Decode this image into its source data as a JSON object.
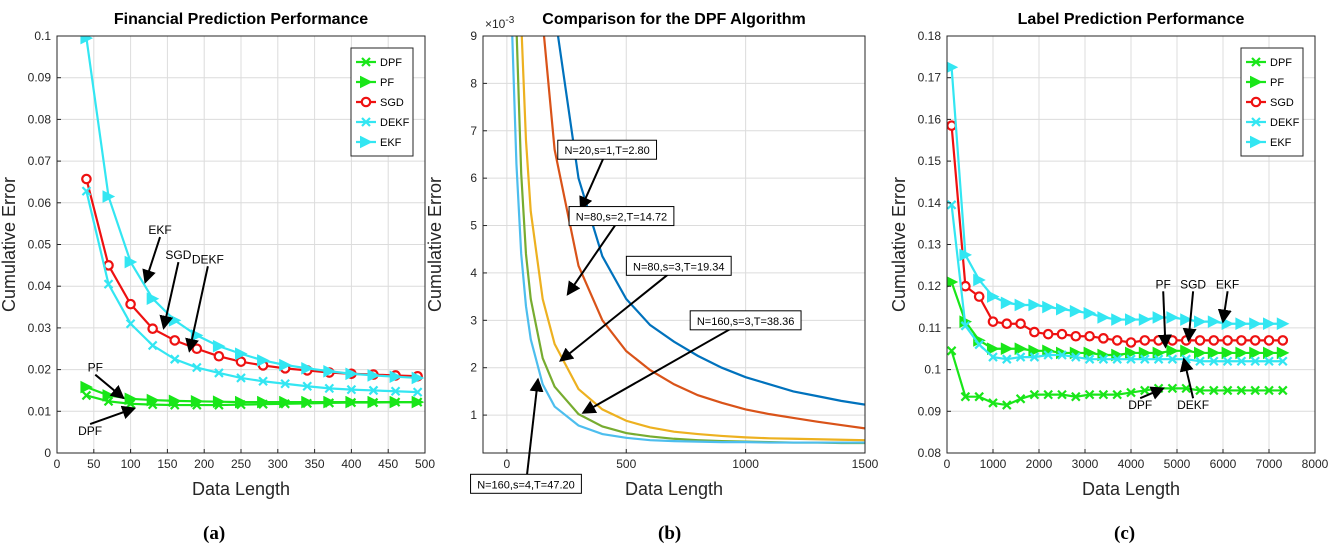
{
  "panels": [
    {
      "label": "(a)"
    },
    {
      "label": "(b)"
    },
    {
      "label": "(c)"
    }
  ],
  "chart_data": [
    {
      "type": "line",
      "title": "Financial Prediction Performance",
      "xlabel": "Data Length",
      "ylabel": "Cumulative Error",
      "xlim": [
        0,
        500
      ],
      "ylim": [
        0,
        0.1
      ],
      "xticks": [
        0,
        50,
        100,
        150,
        200,
        250,
        300,
        350,
        400,
        450,
        500
      ],
      "yticks": [
        0,
        0.01,
        0.02,
        0.03,
        0.04,
        0.05,
        0.06,
        0.07,
        0.08,
        0.09,
        0.1
      ],
      "grid": true,
      "legend_position": "top-right",
      "x": [
        40,
        70,
        100,
        130,
        160,
        190,
        220,
        250,
        280,
        310,
        340,
        370,
        400,
        430,
        460,
        490
      ],
      "series": [
        {
          "name": "DPF",
          "color": "#19e619",
          "marker": "x",
          "values": [
            0.0138,
            0.0124,
            0.0118,
            0.0116,
            0.0115,
            0.0115,
            0.0115,
            0.0116,
            0.0117,
            0.0118,
            0.0119,
            0.012,
            0.0121,
            0.0121,
            0.0122,
            0.0122
          ]
        },
        {
          "name": "PF",
          "color": "#19e619",
          "marker": "triangle-right",
          "values": [
            0.0158,
            0.0138,
            0.013,
            0.0127,
            0.0125,
            0.0124,
            0.0123,
            0.0122,
            0.0122,
            0.0122,
            0.0122,
            0.0122,
            0.0122,
            0.0122,
            0.0122,
            0.0122
          ]
        },
        {
          "name": "SGD",
          "color": "#ee1111",
          "marker": "circle",
          "values": [
            0.0657,
            0.045,
            0.0357,
            0.0298,
            0.027,
            0.025,
            0.0232,
            0.0219,
            0.021,
            0.0203,
            0.0198,
            0.0193,
            0.019,
            0.0188,
            0.0186,
            0.0184
          ]
        },
        {
          "name": "DEKF",
          "color": "#33e6f2",
          "marker": "x",
          "values": [
            0.0628,
            0.0405,
            0.031,
            0.0258,
            0.0225,
            0.0205,
            0.0192,
            0.018,
            0.0172,
            0.0166,
            0.016,
            0.0155,
            0.0152,
            0.015,
            0.0148,
            0.0146
          ]
        },
        {
          "name": "EKF",
          "color": "#33e6f2",
          "marker": "triangle-right",
          "values": [
            0.0995,
            0.0615,
            0.0458,
            0.037,
            0.0318,
            0.0282,
            0.0256,
            0.0238,
            0.0222,
            0.0211,
            0.0203,
            0.0196,
            0.019,
            0.0186,
            0.0183,
            0.018
          ]
        }
      ],
      "annotations": [
        {
          "text": "EKF",
          "x": 140,
          "y": 0.0525,
          "point_x": 120,
          "point_y": 0.041
        },
        {
          "text": "SGD",
          "x": 165,
          "y": 0.0465,
          "point_x": 145,
          "point_y": 0.03
        },
        {
          "text": "DEKF",
          "x": 205,
          "y": 0.0455,
          "point_x": 180,
          "point_y": 0.0245
        },
        {
          "text": "PF",
          "x": 52,
          "y": 0.0195,
          "point_x": 90,
          "point_y": 0.0132
        },
        {
          "text": "DPF",
          "x": 45,
          "y": 0.0043,
          "point_x": 105,
          "point_y": 0.0107
        }
      ]
    },
    {
      "type": "line",
      "title": "Comparison for the DPF Algorithm",
      "xlabel": "Data Length",
      "ylabel": "Cumulative Error",
      "y_multiplier": "×10",
      "y_multiplier_exp": "-3",
      "xlim": [
        -100,
        1500
      ],
      "ylim": [
        0.2,
        9
      ],
      "xticks": [
        0,
        500,
        1000,
        1500
      ],
      "yticks": [
        1,
        2,
        3,
        4,
        5,
        6,
        7,
        8,
        9
      ],
      "grid": true,
      "x": [
        10,
        20,
        40,
        60,
        80,
        100,
        150,
        200,
        300,
        400,
        500,
        600,
        700,
        800,
        900,
        1000,
        1100,
        1200,
        1300,
        1400,
        1500
      ],
      "series": [
        {
          "name": "N=20,s=1,T=2.80",
          "color": "#0072bd",
          "values": [
            null,
            null,
            null,
            null,
            null,
            null,
            null,
            9.5,
            6.0,
            4.35,
            3.45,
            2.9,
            2.55,
            2.25,
            2.0,
            1.8,
            1.65,
            1.5,
            1.4,
            1.3,
            1.22
          ]
        },
        {
          "name": "N=80,s=2,T=14.72",
          "color": "#d95319",
          "values": [
            null,
            null,
            null,
            null,
            null,
            null,
            9.3,
            6.6,
            4.15,
            3.0,
            2.35,
            1.95,
            1.65,
            1.42,
            1.26,
            1.12,
            1.02,
            0.94,
            0.86,
            0.79,
            0.72
          ]
        },
        {
          "name": "N=80,s=3,T=19.34",
          "color": "#edb120",
          "values": [
            null,
            null,
            null,
            9.3,
            6.8,
            5.3,
            3.45,
            2.5,
            1.55,
            1.12,
            0.88,
            0.74,
            0.65,
            0.6,
            0.56,
            0.53,
            0.51,
            0.5,
            0.49,
            0.48,
            0.47
          ]
        },
        {
          "name": "N=160,s=3,T=38.36",
          "color": "#77ac30",
          "values": [
            null,
            null,
            9.2,
            6.1,
            4.4,
            3.45,
            2.2,
            1.6,
            1.02,
            0.76,
            0.62,
            0.55,
            0.5,
            0.47,
            0.45,
            0.44,
            0.43,
            0.42,
            0.42,
            0.41,
            0.41
          ]
        },
        {
          "name": "N=160,s=4,T=47.20",
          "color": "#4dbeee",
          "values": [
            null,
            9.4,
            6.3,
            4.4,
            3.3,
            2.6,
            1.65,
            1.18,
            0.78,
            0.6,
            0.52,
            0.47,
            0.45,
            0.44,
            0.43,
            0.43,
            0.42,
            0.42,
            0.42,
            0.42,
            0.42
          ]
        }
      ],
      "annotations": [
        {
          "text": "N=20,s=1,T=2.80",
          "x": 420,
          "y": 6.6,
          "point_x": 310,
          "point_y": 5.35
        },
        {
          "text": "N=80,s=2,T=14.72",
          "x": 480,
          "y": 5.2,
          "point_x": 255,
          "point_y": 3.55
        },
        {
          "text": "N=80,s=3,T=19.34",
          "x": 720,
          "y": 4.15,
          "point_x": 225,
          "point_y": 2.15
        },
        {
          "text": "N=160,s=3,T=38.36",
          "x": 1000,
          "y": 3.0,
          "point_x": 320,
          "point_y": 1.05
        },
        {
          "text": "N=160,s=4,T=47.20",
          "x": 80,
          "y": -0.45,
          "point_x": 130,
          "point_y": 1.75
        }
      ]
    },
    {
      "type": "line",
      "title": "Label Prediction Performance",
      "xlabel": "Data Length",
      "ylabel": "Cumulative Error",
      "xlim": [
        0,
        8000
      ],
      "ylim": [
        0.08,
        0.18
      ],
      "xticks": [
        0,
        1000,
        2000,
        3000,
        4000,
        5000,
        6000,
        7000,
        8000
      ],
      "yticks": [
        0.08,
        0.09,
        0.1,
        0.11,
        0.12,
        0.13,
        0.14,
        0.15,
        0.16,
        0.17,
        0.18
      ],
      "grid": true,
      "legend_position": "top-right",
      "x": [
        100,
        400,
        700,
        1000,
        1300,
        1600,
        1900,
        2200,
        2500,
        2800,
        3100,
        3400,
        3700,
        4000,
        4300,
        4600,
        4900,
        5200,
        5500,
        5800,
        6100,
        6400,
        6700,
        7000,
        7300
      ],
      "series": [
        {
          "name": "DPF",
          "color": "#19e619",
          "marker": "x",
          "values": [
            0.1045,
            0.0935,
            0.0935,
            0.092,
            0.0915,
            0.093,
            0.094,
            0.094,
            0.094,
            0.0935,
            0.094,
            0.094,
            0.094,
            0.0945,
            0.095,
            0.0955,
            0.0955,
            0.0955,
            0.095,
            0.095,
            0.095,
            0.095,
            0.095,
            0.095,
            0.095
          ]
        },
        {
          "name": "PF",
          "color": "#19e619",
          "marker": "triangle-right",
          "values": [
            0.121,
            0.1115,
            0.107,
            0.105,
            0.105,
            0.105,
            0.1045,
            0.1045,
            0.104,
            0.104,
            0.104,
            0.1035,
            0.1035,
            0.104,
            0.104,
            0.104,
            0.1045,
            0.1045,
            0.104,
            0.104,
            0.104,
            0.104,
            0.104,
            0.104,
            0.104
          ]
        },
        {
          "name": "SGD",
          "color": "#ee1111",
          "marker": "circle",
          "values": [
            0.1585,
            0.12,
            0.1175,
            0.1115,
            0.111,
            0.111,
            0.109,
            0.1085,
            0.1085,
            0.108,
            0.108,
            0.1075,
            0.107,
            0.1065,
            0.107,
            0.107,
            0.107,
            0.107,
            0.107,
            0.107,
            0.107,
            0.107,
            0.107,
            0.107,
            0.107
          ]
        },
        {
          "name": "DEKF",
          "color": "#33e6f2",
          "marker": "x",
          "values": [
            0.1395,
            0.1105,
            0.106,
            0.103,
            0.1025,
            0.103,
            0.103,
            0.1035,
            0.1035,
            0.103,
            0.1025,
            0.1025,
            0.1025,
            0.1025,
            0.1025,
            0.1025,
            0.1025,
            0.1025,
            0.102,
            0.102,
            0.102,
            0.102,
            0.102,
            0.102,
            0.102
          ]
        },
        {
          "name": "EKF",
          "color": "#33e6f2",
          "marker": "triangle-right",
          "values": [
            0.1725,
            0.1275,
            0.1215,
            0.1175,
            0.116,
            0.1155,
            0.1155,
            0.115,
            0.1145,
            0.114,
            0.1135,
            0.1125,
            0.112,
            0.112,
            0.112,
            0.1125,
            0.1125,
            0.112,
            0.1115,
            0.1115,
            0.111,
            0.111,
            0.111,
            0.111,
            0.111
          ]
        }
      ],
      "annotations": [
        {
          "text": "PF",
          "x": 4700,
          "y": 0.1195,
          "point_x": 4750,
          "point_y": 0.1055
        },
        {
          "text": "SGD",
          "x": 5350,
          "y": 0.1195,
          "point_x": 5250,
          "point_y": 0.107
        },
        {
          "text": "EKF",
          "x": 6100,
          "y": 0.1195,
          "point_x": 6000,
          "point_y": 0.1115
        },
        {
          "text": "DPF",
          "x": 4200,
          "y": 0.0905,
          "point_x": 4700,
          "point_y": 0.0955
        },
        {
          "text": "DEKF",
          "x": 5350,
          "y": 0.0905,
          "point_x": 5150,
          "point_y": 0.1025
        }
      ]
    }
  ]
}
